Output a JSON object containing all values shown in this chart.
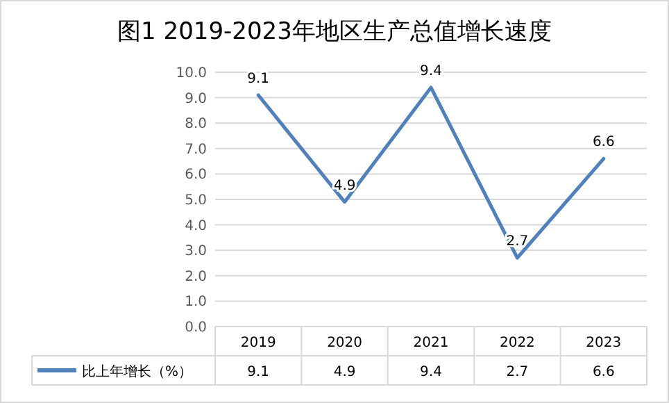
{
  "chart_data": {
    "type": "line",
    "title": "图1  2019-2023年地区生产总值增长速度",
    "categories": [
      "2019",
      "2020",
      "2021",
      "2022",
      "2023"
    ],
    "series": [
      {
        "name": "比上年增长（%）",
        "color": "#4f81bd",
        "values": [
          9.1,
          4.9,
          9.4,
          2.7,
          6.6
        ]
      }
    ],
    "annotations": [
      {
        "text": "9.1",
        "x": "2019",
        "y": 9.1
      },
      {
        "text": "4.9",
        "x": "2020",
        "y": 4.9
      },
      {
        "text": "9.4",
        "x": "2021",
        "y": 9.4
      },
      {
        "text": "2.7",
        "x": "2022",
        "y": 2.7
      },
      {
        "text": "6.6",
        "x": "2023",
        "y": 6.6
      }
    ],
    "ylim": [
      0,
      10
    ],
    "yticks": [
      {
        "value": 0,
        "label": "0.0"
      },
      {
        "value": 1,
        "label": "1.0"
      },
      {
        "value": 2,
        "label": "2.0"
      },
      {
        "value": 3,
        "label": "3.0"
      },
      {
        "value": 4,
        "label": "4.0"
      },
      {
        "value": 5,
        "label": "5.0"
      },
      {
        "value": 6,
        "label": "6.0"
      },
      {
        "value": 7,
        "label": "7.0"
      },
      {
        "value": 8,
        "label": "8.0"
      },
      {
        "value": 9,
        "label": "9.0"
      },
      {
        "value": 10,
        "label": "10.0"
      }
    ],
    "grid": "y",
    "data_labels": true,
    "legend": "bottom",
    "marker": "none",
    "line_style": "solid"
  }
}
